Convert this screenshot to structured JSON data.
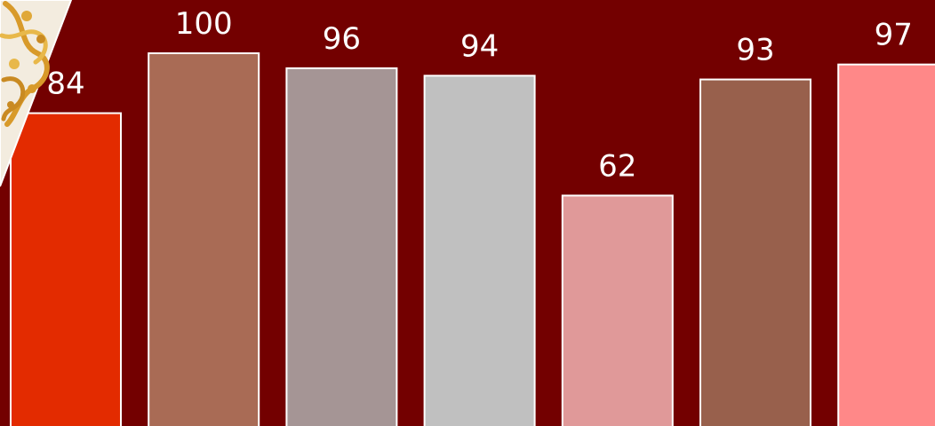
{
  "chart_data": {
    "type": "bar",
    "title": "",
    "xlabel": "",
    "ylabel": "",
    "values": [
      84,
      100,
      96,
      94,
      62,
      93,
      97
    ],
    "colors": [
      "#e32b00",
      "#a96b55",
      "#a59595",
      "#c0c0c0",
      "#e09999",
      "#98604c",
      "#ff8888"
    ],
    "ylim": [
      0,
      100
    ],
    "grid": false,
    "legend": "none"
  },
  "theme": {
    "background": "#730000",
    "bar_border": "#ffffff",
    "label_color": "#ffffff"
  },
  "decoration": {
    "corner_ornament": "gold-swirl-ornament"
  }
}
